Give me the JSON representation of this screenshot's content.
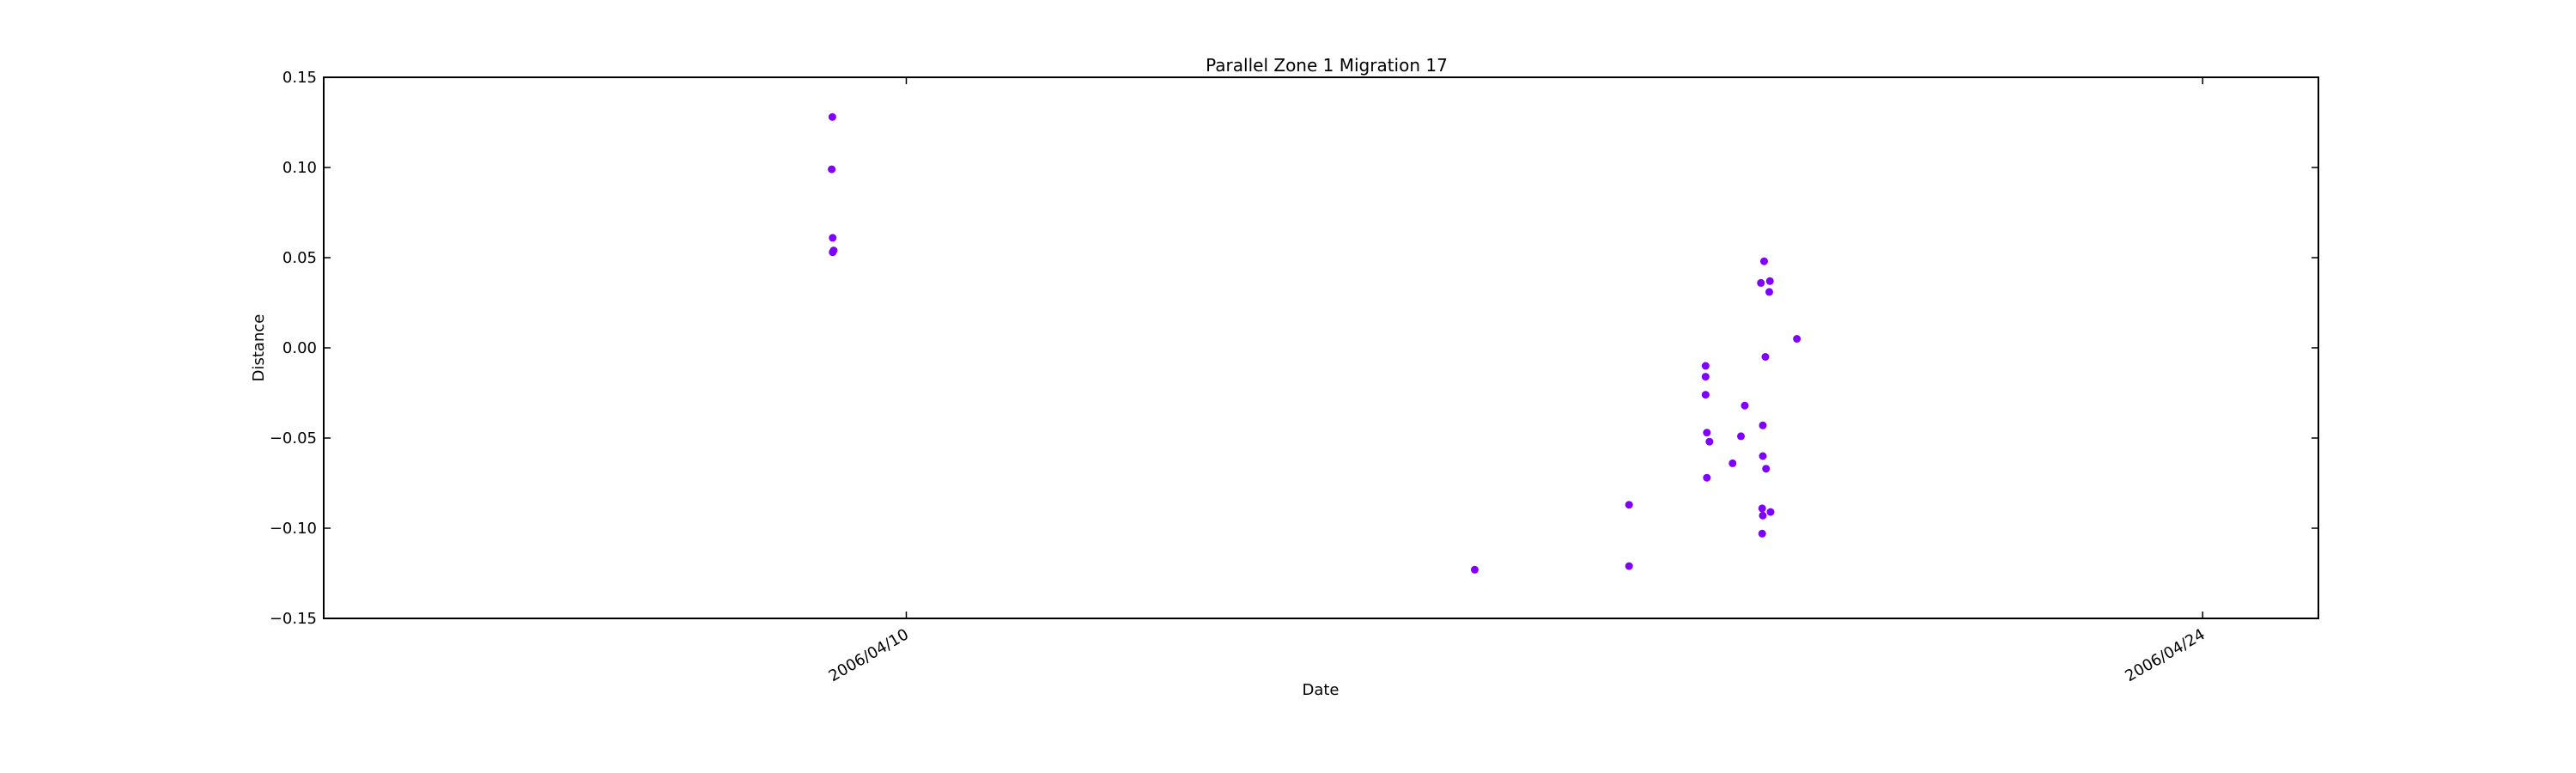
{
  "chart_data": {
    "type": "scatter",
    "title": "Parallel Zone 1 Migration 17",
    "xlabel": "Date",
    "ylabel": "Distance",
    "x_axis_type": "date",
    "xlim": [
      "2006-04-03T17:00",
      "2006-04-25T06:00"
    ],
    "ylim": [
      -0.15,
      0.15
    ],
    "x_ticks": [
      {
        "label": "2006/04/10",
        "value": "2006-04-10T00:00"
      },
      {
        "label": "2006/04/24",
        "value": "2006-04-24T00:00"
      }
    ],
    "y_ticks": [
      {
        "label": "0.15",
        "value": 0.15
      },
      {
        "label": "0.10",
        "value": 0.1
      },
      {
        "label": "0.05",
        "value": 0.05
      },
      {
        "label": "0.00",
        "value": 0.0
      },
      {
        "label": "−0.05",
        "value": -0.05
      },
      {
        "label": "−0.10",
        "value": -0.1
      },
      {
        "label": "−0.15",
        "value": -0.15
      }
    ],
    "grid": false,
    "marker_color": "#7f00ff",
    "points": [
      {
        "x": "2006-04-09T04:50",
        "y": 0.128
      },
      {
        "x": "2006-04-09T04:40",
        "y": 0.099
      },
      {
        "x": "2006-04-09T04:55",
        "y": 0.061
      },
      {
        "x": "2006-04-09T04:55",
        "y": 0.053
      },
      {
        "x": "2006-04-09T05:10",
        "y": 0.054
      },
      {
        "x": "2006-04-16T03:20",
        "y": -0.123
      },
      {
        "x": "2006-04-17T19:20",
        "y": -0.121
      },
      {
        "x": "2006-04-17T19:20",
        "y": -0.087
      },
      {
        "x": "2006-04-18T15:10",
        "y": -0.01
      },
      {
        "x": "2006-04-18T15:10",
        "y": -0.016
      },
      {
        "x": "2006-04-18T15:10",
        "y": -0.026
      },
      {
        "x": "2006-04-18T15:30",
        "y": -0.047
      },
      {
        "x": "2006-04-18T16:10",
        "y": -0.052
      },
      {
        "x": "2006-04-18T15:30",
        "y": -0.072
      },
      {
        "x": "2006-04-18T22:10",
        "y": -0.064
      },
      {
        "x": "2006-04-19T00:20",
        "y": -0.049
      },
      {
        "x": "2006-04-19T01:20",
        "y": -0.032
      },
      {
        "x": "2006-04-19T05:30",
        "y": 0.036
      },
      {
        "x": "2006-04-19T06:20",
        "y": 0.048
      },
      {
        "x": "2006-04-19T07:50",
        "y": 0.037
      },
      {
        "x": "2006-04-19T07:40",
        "y": 0.031
      },
      {
        "x": "2006-04-19T06:40",
        "y": -0.005
      },
      {
        "x": "2006-04-19T06:00",
        "y": -0.043
      },
      {
        "x": "2006-04-19T06:00",
        "y": -0.06
      },
      {
        "x": "2006-04-19T06:50",
        "y": -0.067
      },
      {
        "x": "2006-04-19T05:50",
        "y": -0.089
      },
      {
        "x": "2006-04-19T06:00",
        "y": -0.093
      },
      {
        "x": "2006-04-19T08:00",
        "y": -0.091
      },
      {
        "x": "2006-04-19T05:50",
        "y": -0.103
      },
      {
        "x": "2006-04-19T14:50",
        "y": 0.005
      }
    ]
  }
}
